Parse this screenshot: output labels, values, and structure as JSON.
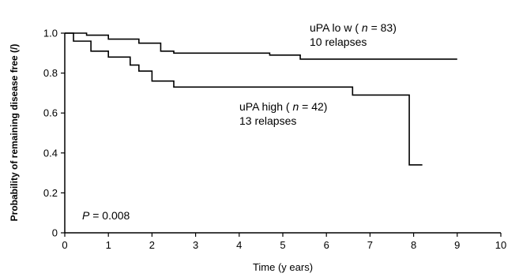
{
  "chart_data": {
    "type": "line",
    "title": "",
    "xlabel": "Time (y ears)",
    "ylabel": "Probability of remaining disease free (/)",
    "xlim": [
      0,
      10
    ],
    "ylim": [
      0,
      1.0
    ],
    "xticks": [
      "0",
      "1",
      "2",
      "3",
      "4",
      "5",
      "6",
      "7",
      "8",
      "9",
      "10"
    ],
    "yticks": [
      "0",
      "0.2",
      "0.4",
      "0.6",
      "0.8",
      "1.0"
    ],
    "grid": false,
    "series": [
      {
        "name": "uPA lo w",
        "step": true,
        "color": "#000000",
        "x": [
          0,
          0.5,
          1.0,
          1.7,
          2.2,
          2.5,
          4.7,
          5.4,
          9.0
        ],
        "y": [
          1.0,
          0.99,
          0.97,
          0.95,
          0.91,
          0.9,
          0.89,
          0.87,
          0.87
        ]
      },
      {
        "name": "uPA high",
        "step": true,
        "color": "#000000",
        "x": [
          0,
          0.2,
          0.6,
          1.0,
          1.5,
          1.7,
          2.0,
          2.5,
          6.6,
          7.9,
          8.2
        ],
        "y": [
          1.0,
          0.96,
          0.91,
          0.88,
          0.84,
          0.81,
          0.76,
          0.73,
          0.69,
          0.34,
          0.34
        ]
      }
    ],
    "annotations": {
      "low_title": "uPA lo w (",
      "low_n": "n",
      "low_count": "= 83)",
      "low_relapses": "10 relapses",
      "high_title": "uPA high (",
      "high_n": "n",
      "high_count": "= 42)",
      "high_relapses": "13 relapses",
      "p_symbol": "P",
      "p_value": "= 0.008"
    }
  }
}
